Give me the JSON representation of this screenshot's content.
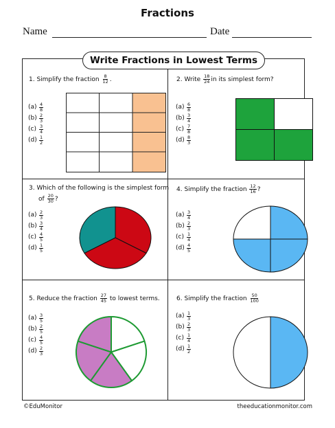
{
  "worksheet": {
    "title": "Fractions",
    "name_label": "Name",
    "date_label": "Date",
    "banner": "Write Fractions in Lowest Terms"
  },
  "q1": {
    "text_before": "1.  Simplify the fraction",
    "num": "8",
    "den": "12",
    "text_after": ".",
    "options": [
      {
        "label": "(a)",
        "num": "4",
        "den": "8"
      },
      {
        "label": "(b)",
        "num": "2",
        "den": "3"
      },
      {
        "label": "(c)",
        "num": "3",
        "den": "4"
      },
      {
        "label": "(d)",
        "num": "1",
        "den": "2"
      }
    ]
  },
  "q2": {
    "text_before": "2.  Write",
    "num": "18",
    "den": "24",
    "text_after": "in its simplest form?",
    "options": [
      {
        "label": "(a)",
        "num": "6",
        "den": "8"
      },
      {
        "label": "(b)",
        "num": "3",
        "den": "4"
      },
      {
        "label": "(c)",
        "num": "7",
        "den": "8"
      },
      {
        "label": "(d)",
        "num": "8",
        "den": "3"
      }
    ]
  },
  "q3": {
    "text_line1": "3.  Which of the following is the simplest form",
    "text_of": "of",
    "num": "20",
    "den": "30",
    "text_after": "?",
    "options": [
      {
        "label": "(a)",
        "num": "2",
        "den": "3"
      },
      {
        "label": "(b)",
        "num": "3",
        "den": "4"
      },
      {
        "label": "(c)",
        "num": "4",
        "den": "5"
      },
      {
        "label": "(d)",
        "num": "1",
        "den": "5"
      }
    ]
  },
  "q4": {
    "text_before": "4.  Simplify the fraction",
    "num": "12",
    "den": "16",
    "text_after": "?",
    "options": [
      {
        "label": "(a)",
        "num": "3",
        "den": "4"
      },
      {
        "label": "(b)",
        "num": "2",
        "den": "3"
      },
      {
        "label": "(c)",
        "num": "1",
        "den": "4"
      },
      {
        "label": "(d)",
        "num": "4",
        "den": "5"
      }
    ]
  },
  "q5": {
    "text_before": "5.  Reduce the fraction",
    "num": "27",
    "den": "45",
    "text_after": "to lowest terms.",
    "options": [
      {
        "label": "(a)",
        "num": "3",
        "den": "5"
      },
      {
        "label": "(b)",
        "num": "2",
        "den": "5"
      },
      {
        "label": "(c)",
        "num": "4",
        "den": "5"
      },
      {
        "label": "(d)",
        "num": "2",
        "den": "3"
      }
    ]
  },
  "q6": {
    "text_before": "6.  Simplify the fraction",
    "num": "50",
    "den": "100",
    "text_after": "",
    "options": [
      {
        "label": "(a)",
        "num": "1",
        "den": "3"
      },
      {
        "label": "(b)",
        "num": "2",
        "den": "3"
      },
      {
        "label": "(c)",
        "num": "1",
        "den": "4"
      },
      {
        "label": "(d)",
        "num": "1",
        "den": "2"
      }
    ]
  },
  "colors": {
    "peach": "#f9c191",
    "green": "#1ea33c",
    "teal": "#11928f",
    "red": "#cc0814",
    "blue": "#5ab7f3",
    "purple": "#c87cc4",
    "border_green": "#1d9a32"
  },
  "footer": {
    "left": "©EduMonitor",
    "right": "theeducationmonitor.com"
  }
}
